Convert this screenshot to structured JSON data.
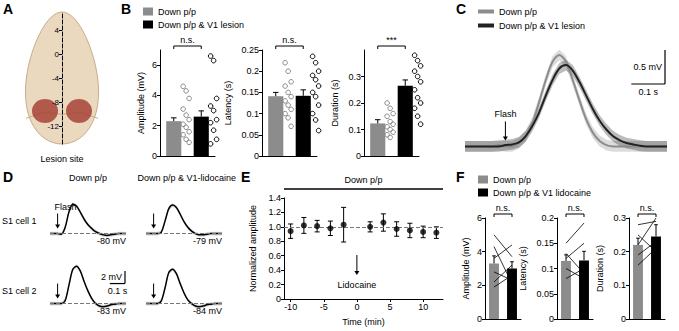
{
  "chart_data": [
    {
      "panel": "A",
      "type": "scale",
      "ylim": [
        -15,
        7
      ],
      "yticks": [
        -12,
        -8,
        -4,
        0,
        4
      ],
      "annotation": "Lesion site",
      "lesion": [
        -7.5,
        -11.5
      ],
      "color": "#a33a2e",
      "grid": false
    },
    {
      "panel": "B",
      "type": "bar",
      "tick_labels": "y",
      "grid": false,
      "legend": "top-left",
      "series": [
        {
          "name": "Down p/p",
          "color": "#8c8c8c",
          "marker": "open_circle"
        },
        {
          "name": "Down p/p & V1 lesion",
          "color": "#000000",
          "marker": "open_circle"
        }
      ],
      "charts": [
        {
          "ylabel": "Amplitude (mV)",
          "ylim": [
            0,
            7
          ],
          "yticks": [
            0,
            2,
            4,
            6
          ],
          "values": [
            2.3,
            2.6
          ],
          "errors": [
            0.22,
            0.38
          ],
          "points": [
            [
              4.6,
              4.3,
              3.8,
              3.1,
              2.7,
              2.4,
              2.1,
              1.9,
              1.6,
              1.4,
              1.1,
              0.9
            ],
            [
              6.6,
              6.3,
              3.8,
              3.3,
              3.0,
              2.4,
              2.2,
              1.7,
              1.1,
              0.8
            ]
          ],
          "annotation": "n.s."
        },
        {
          "ylabel": "Latency (s)",
          "ylim": [
            0,
            0.25
          ],
          "yticks": [
            0,
            0.05,
            0.1,
            0.15,
            0.2,
            0.25
          ],
          "values": [
            0.141,
            0.142
          ],
          "errors": [
            0.009,
            0.014
          ],
          "points": [
            [
              0.22,
              0.2,
              0.175,
              0.165,
              0.15,
              0.14,
              0.13,
              0.12,
              0.11,
              0.1,
              0.09,
              0.07
            ],
            [
              0.235,
              0.22,
              0.2,
              0.19,
              0.18,
              0.165,
              0.15,
              0.14,
              0.12,
              0.1,
              0.085,
              0.06
            ]
          ],
          "annotation": "n.s."
        },
        {
          "ylabel": "Duration (s)",
          "ylim": [
            0,
            0.4
          ],
          "yticks": [
            0,
            0.1,
            0.2,
            0.3
          ],
          "values": [
            0.123,
            0.265
          ],
          "errors": [
            0.014,
            0.022
          ],
          "points": [
            [
              0.2,
              0.18,
              0.16,
              0.15,
              0.13,
              0.12,
              0.11,
              0.1,
              0.09,
              0.08,
              0.07
            ],
            [
              0.38,
              0.36,
              0.34,
              0.32,
              0.3,
              0.28,
              0.25,
              0.22,
              0.2,
              0.18,
              0.15,
              0.12
            ]
          ],
          "annotation": "***"
        }
      ]
    },
    {
      "panel": "C",
      "type": "line",
      "tick_labels": false,
      "grid": false,
      "legend": "top-left",
      "x": [
        0,
        0.02,
        0.04,
        0.06,
        0.08,
        0.1,
        0.12,
        0.14,
        0.16,
        0.18,
        0.2,
        0.22,
        0.24,
        0.26,
        0.28,
        0.3,
        0.32,
        0.34,
        0.36,
        0.38,
        0.4,
        0.42,
        0.44,
        0.46,
        0.48,
        0.5,
        0.52,
        0.54,
        0.56,
        0.58,
        0.6
      ],
      "xlim": [
        0,
        0.6
      ],
      "ylim": [
        -0.2,
        1.6
      ],
      "series": [
        {
          "name": "Down p/p",
          "color": "#8c8c8c",
          "error": 0.08,
          "values": [
            0,
            0,
            0,
            0,
            0,
            0.02,
            0,
            0,
            0.05,
            0.15,
            0.35,
            0.65,
            0.98,
            1.25,
            1.35,
            1.25,
            0.98,
            0.68,
            0.4,
            0.2,
            0.08,
            0.02,
            0,
            0,
            0,
            0,
            0,
            0,
            0,
            0,
            0
          ]
        },
        {
          "name": "Down p/p & V1 lesion",
          "color": "#222222",
          "error": 0.08,
          "values": [
            0,
            0,
            0,
            0,
            0,
            0,
            0.02,
            0.03,
            0.06,
            0.15,
            0.3,
            0.5,
            0.75,
            0.98,
            1.15,
            1.2,
            1.12,
            0.95,
            0.75,
            0.55,
            0.38,
            0.25,
            0.15,
            0.09,
            0.05,
            0.03,
            0.01,
            0,
            0,
            0,
            0
          ]
        }
      ],
      "annotation": "Flash",
      "flash": 0.12,
      "scale_bars": [
        {
          "axis": "y",
          "length": 0.5,
          "label": "0.5 mV"
        },
        {
          "axis": "x",
          "length": 0.1,
          "label": "0.1 s"
        }
      ]
    },
    {
      "panel": "D",
      "type": "line",
      "tick_labels": false,
      "grid": false,
      "color": "#000000",
      "error": 0.3,
      "columns": [
        "Down p/p",
        "Down p/p & V1-lidocaine"
      ],
      "rows": [
        "S1 cell 1",
        "S1 cell 2"
      ],
      "x": [
        0,
        0.025,
        0.05,
        0.075,
        0.1,
        0.125,
        0.15,
        0.175,
        0.2,
        0.225,
        0.25,
        0.275,
        0.3,
        0.325,
        0.35,
        0.375,
        0.4,
        0.425,
        0.45,
        0.475,
        0.5
      ],
      "xlim": [
        0,
        0.5
      ],
      "annotation": "Flash",
      "flash": 0.05,
      "traces": [
        [
          {
            "baseline": -80,
            "baseline_label": "-80 mV",
            "ylim": [
              -82,
              -73
            ],
            "values": [
              -80,
              -80,
              -80,
              -80.1,
              -79,
              -76.5,
              -75.3,
              -75.6,
              -76.6,
              -77.7,
              -78.6,
              -79.2,
              -79.7,
              -80,
              -80.2,
              -80.3,
              -80.2,
              -80.1,
              -80,
              -80,
              -80
            ]
          },
          {
            "baseline": -79,
            "baseline_label": "-79 mV",
            "ylim": [
              -81,
              -72
            ],
            "values": [
              -79,
              -79,
              -79,
              -79,
              -78.8,
              -77,
              -75,
              -74.4,
              -74.8,
              -75.9,
              -77.1,
              -78,
              -78.6,
              -79,
              -79.2,
              -79.2,
              -79.1,
              -79,
              -79,
              -79,
              -79
            ]
          }
        ],
        [
          {
            "baseline": -83,
            "baseline_label": "-83 mV",
            "ylim": [
              -85,
              -76
            ],
            "values": [
              -83,
              -83,
              -83,
              -83,
              -82.5,
              -80,
              -77.5,
              -77,
              -77.8,
              -79.5,
              -81,
              -82.2,
              -83,
              -83.4,
              -83.5,
              -83.4,
              -83.2,
              -83.1,
              -83,
              -83,
              -83
            ]
          },
          {
            "baseline": -84,
            "baseline_label": "-84 mV",
            "ylim": [
              -86,
              -77
            ],
            "values": [
              -84,
              -84,
              -84,
              -84,
              -83.6,
              -81.5,
              -79,
              -78.5,
              -79.2,
              -80.8,
              -82.3,
              -83.4,
              -84,
              -84.4,
              -84.5,
              -84.4,
              -84.2,
              -84.1,
              -84,
              -84,
              -84
            ]
          }
        ]
      ],
      "scale_bars": [
        {
          "axis": "y",
          "length": 2,
          "label": "2 mV"
        },
        {
          "axis": "x",
          "length": 0.1,
          "label": "0.1 s"
        }
      ]
    },
    {
      "panel": "E",
      "type": "scatter",
      "grid": false,
      "color": "#000000",
      "marker": "circle",
      "x": [
        -10,
        -8,
        -6,
        -4,
        -2,
        2,
        4,
        6,
        8,
        10,
        12
      ],
      "values": [
        0.94,
        1.02,
        1.01,
        0.98,
        1.03,
        1.0,
        1.06,
        0.97,
        0.95,
        0.93,
        0.92
      ],
      "errors": [
        0.1,
        0.11,
        0.08,
        0.1,
        0.24,
        0.07,
        0.12,
        0.1,
        0.1,
        0.08,
        0.08
      ],
      "xlim": [
        -11,
        13
      ],
      "xticks": [
        -10,
        -5,
        0,
        5,
        10
      ],
      "ylim": [
        0,
        1.4
      ],
      "yticks": [
        0,
        0.2,
        0.4,
        0.6,
        0.8,
        {
          "value": 1,
          "label": "1.0"
        },
        1.2,
        1.4
      ],
      "xlabel": "Time (min)",
      "ylabel": "Normalized amplitude",
      "reference": 1,
      "annotations": [
        {
          "text": "Down p/p",
          "x": [
            -11,
            13
          ]
        },
        {
          "text": "Lidocaine",
          "x": 0
        }
      ]
    },
    {
      "panel": "F",
      "type": "bar",
      "tick_labels": "y",
      "grid": false,
      "legend": "top-left",
      "series": [
        {
          "name": "Down p/p",
          "color": "#8c8c8c"
        },
        {
          "name": "Down p/p & V1 lidocaine",
          "color": "#000000"
        }
      ],
      "charts": [
        {
          "ylabel": "Amplitude (mV)",
          "ylim": [
            0,
            6
          ],
          "yticks": [
            0,
            2,
            4,
            6
          ],
          "values": [
            3.3,
            3.0
          ],
          "errors": [
            0.45,
            0.4
          ],
          "pairs": [
            [
              5.0,
              3.7
            ],
            [
              4.3,
              2.1
            ],
            [
              3.6,
              4.4
            ],
            [
              2.8,
              2.3
            ],
            [
              2.2,
              3.2
            ],
            [
              1.9,
              2.6
            ]
          ],
          "annotation": "n.s."
        },
        {
          "ylabel": "Latency (s)",
          "ylim": [
            0,
            0.2
          ],
          "yticks": [
            0,
            0.05,
            0.1,
            0.15,
            0.2
          ],
          "values": [
            0.115,
            0.116
          ],
          "errors": [
            0.012,
            0.018
          ],
          "pairs": [
            [
              0.15,
              0.19
            ],
            [
              0.13,
              0.09
            ],
            [
              0.12,
              0.15
            ],
            [
              0.1,
              0.08
            ],
            [
              0.08,
              0.1
            ]
          ],
          "annotation": "n.s."
        },
        {
          "ylabel": "Duration (s)",
          "ylim": [
            0,
            0.3
          ],
          "yticks": [
            0,
            0.1,
            0.2,
            0.3
          ],
          "values": [
            0.22,
            0.245
          ],
          "errors": [
            0.02,
            0.035
          ],
          "pairs": [
            [
              0.28,
              0.29
            ],
            [
              0.25,
              0.2
            ],
            [
              0.22,
              0.3
            ],
            [
              0.19,
              0.23
            ],
            [
              0.16,
              0.21
            ]
          ],
          "annotation": "n.s."
        }
      ]
    }
  ]
}
